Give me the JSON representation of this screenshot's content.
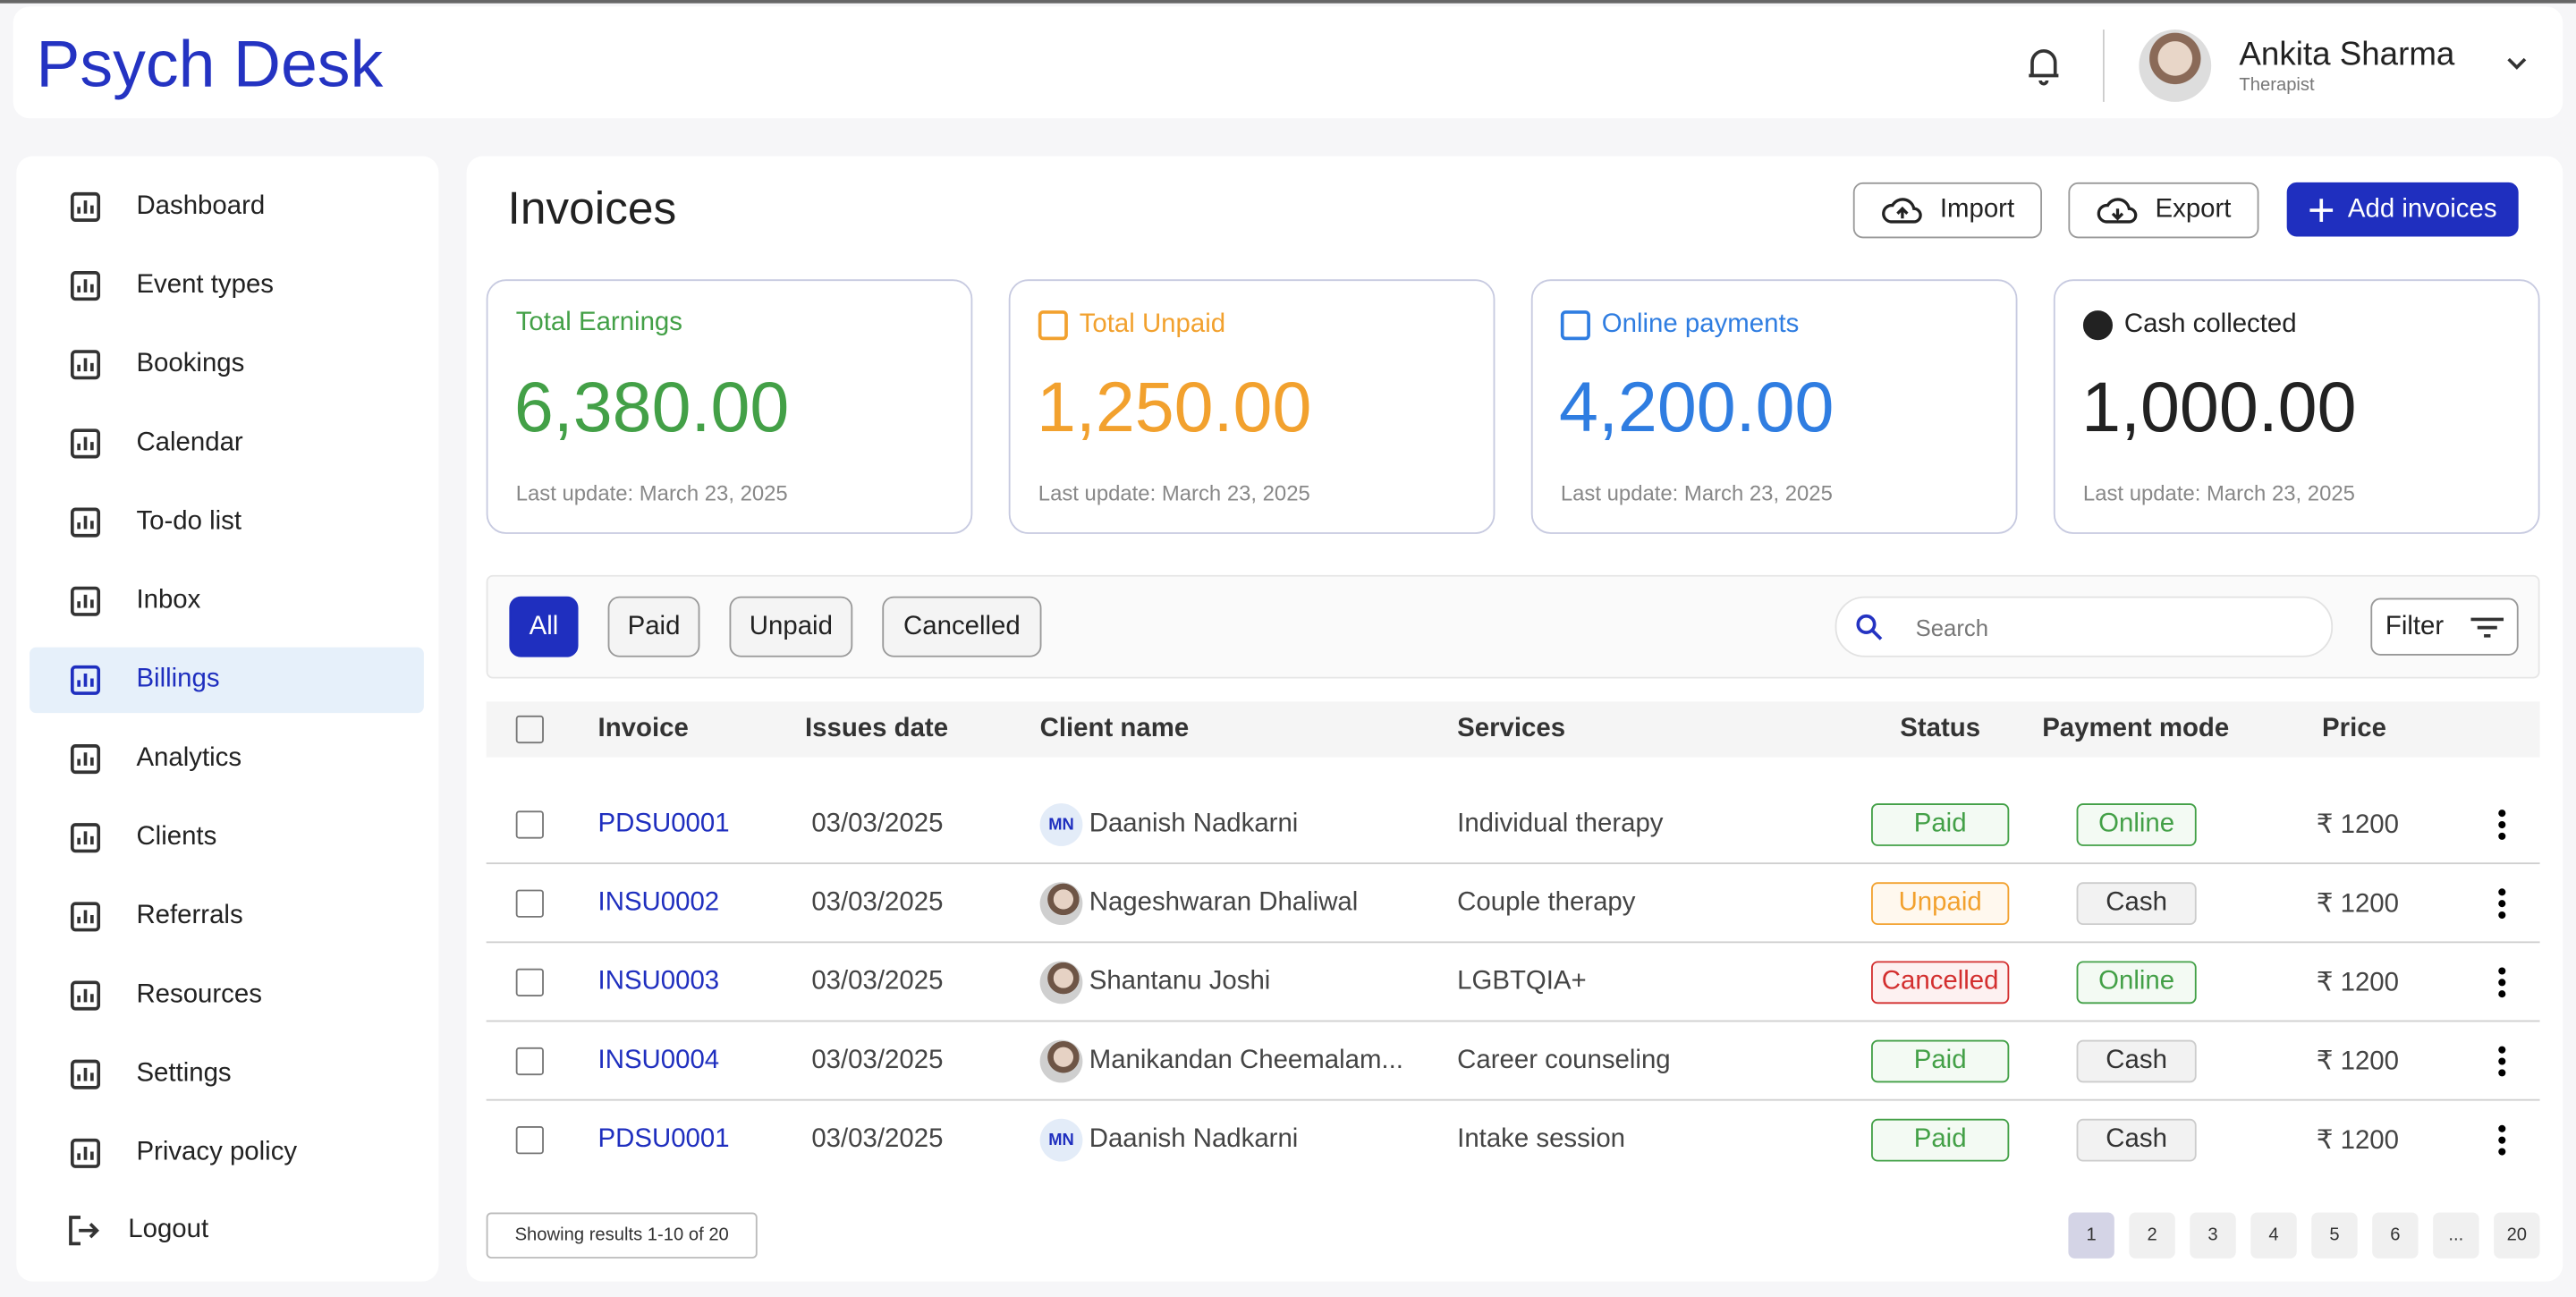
{
  "header": {
    "brand": "Psych Desk",
    "user": {
      "name": "Ankita Sharma",
      "role": "Therapist"
    }
  },
  "sidebar": {
    "items": [
      "Dashboard",
      "Event types",
      "Bookings",
      "Calendar",
      "To-do list",
      "Inbox",
      "Billings",
      "Analytics",
      "Clients",
      "Referrals",
      "Resources",
      "Settings",
      "Privacy policy"
    ],
    "active_item": "Billings",
    "logout": "Logout"
  },
  "page": {
    "title": "Invoices",
    "actions": {
      "import": "Import",
      "export": "Export",
      "add": "Add invoices"
    }
  },
  "cards": [
    {
      "label": "Total Earnings",
      "value": "6,380.00",
      "note": "Last update: March 23, 2025",
      "color": "#43a047"
    },
    {
      "label": "Total Unpaid",
      "value": "1,250.00",
      "note": "Last update: March 23, 2025",
      "color": "#f2a12e"
    },
    {
      "label": "Online payments",
      "value": "4,200.00",
      "note": "Last update: March 23, 2025",
      "color": "#2f7de1"
    },
    {
      "label": "Cash collected",
      "value": "1,000.00",
      "note": "Last update: March 23, 2025",
      "color": "#222222"
    }
  ],
  "filters": {
    "tabs": [
      "All",
      "Paid",
      "Unpaid",
      "Cancelled"
    ],
    "active_tab": "All",
    "search_placeholder": "Search",
    "filter": "Filter"
  },
  "table": {
    "columns": [
      "Invoice",
      "Issues date",
      "Client name",
      "Services",
      "Status",
      "Payment mode",
      "Price"
    ],
    "rows": [
      {
        "invoice": "PDSU0001",
        "date": "03/03/2025",
        "initials": "MN",
        "client": "Daanish Nadkarni",
        "service": "Individual therapy",
        "status": "Paid",
        "mode": "Online",
        "price": "₹ 1200"
      },
      {
        "invoice": "INSU0002",
        "date": "03/03/2025",
        "client": "Nageshwaran Dhaliwal",
        "service": "Couple therapy",
        "status": "Unpaid",
        "mode": "Cash",
        "price": "₹ 1200"
      },
      {
        "invoice": "INSU0003",
        "date": "03/03/2025",
        "client": "Shantanu Joshi",
        "service": "LGBTQIA+",
        "status": "Cancelled",
        "mode": "Online",
        "price": "₹ 1200"
      },
      {
        "invoice": "INSU0004",
        "date": "03/03/2025",
        "client": "Manikandan Cheemalam...",
        "service": "Career counseling",
        "status": "Paid",
        "mode": "Cash",
        "price": "₹ 1200"
      },
      {
        "invoice": "PDSU0001",
        "date": "03/03/2025",
        "initials": "MN",
        "client": "Daanish Nadkarni",
        "service": "Intake session",
        "status": "Paid",
        "mode": "Cash",
        "price": "₹ 1200"
      }
    ]
  },
  "footer": {
    "summary": "Showing results 1-10 of 20",
    "pages": [
      "1",
      "2",
      "3",
      "4",
      "5",
      "6",
      "...",
      "20"
    ],
    "current_page": "1"
  }
}
